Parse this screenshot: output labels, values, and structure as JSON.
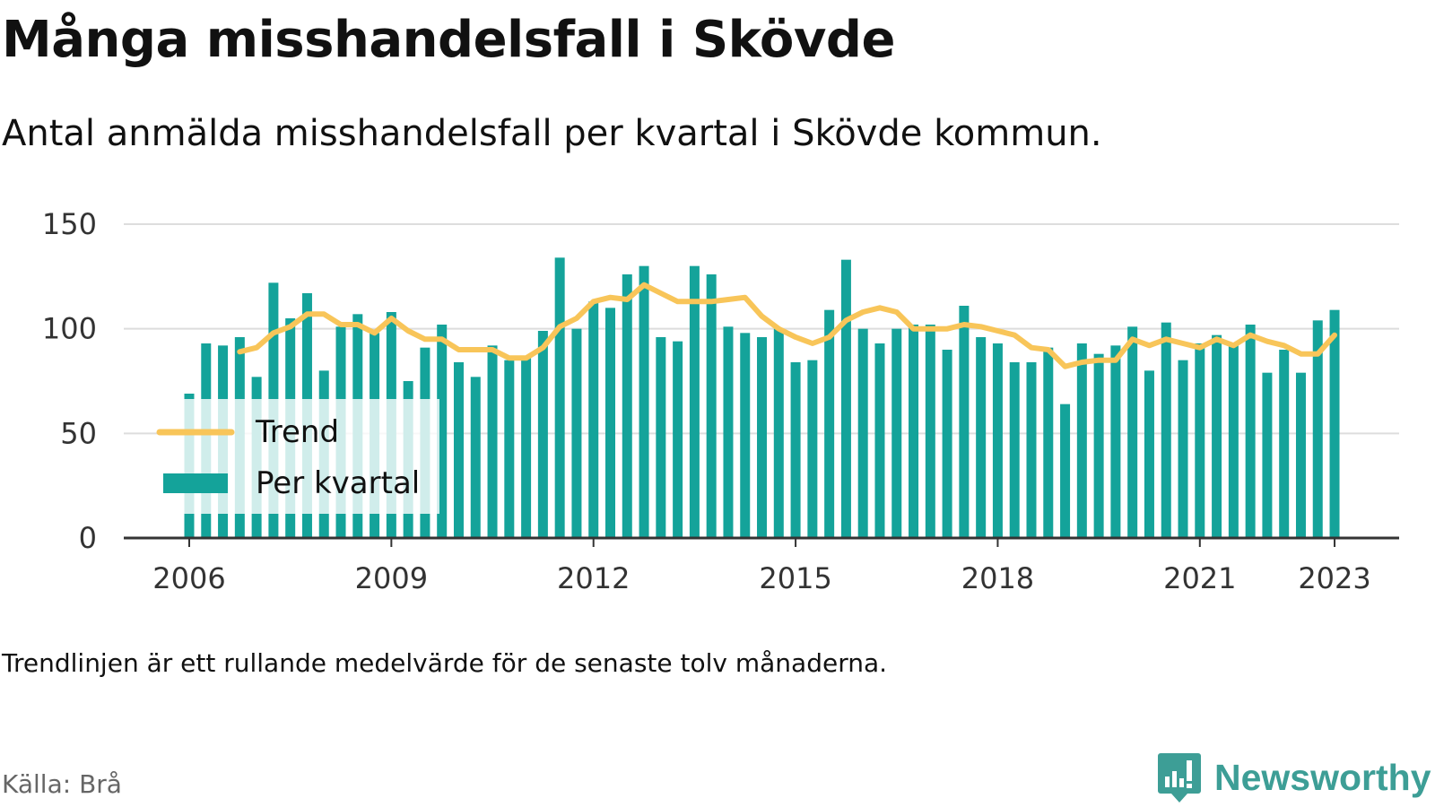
{
  "header": {
    "title": "Många misshandelsfall i Skövde",
    "subtitle": "Antal anmälda misshandelsfall per kvartal i Skövde kommun."
  },
  "footer": {
    "note": "Trendlinjen är ett rullande medelvärde för de senaste tolv månaderna.",
    "source": "Källa: Brå",
    "brand": "Newsworthy"
  },
  "colors": {
    "bar": "#14a39a",
    "trend": "#f8c559",
    "grid": "#dddddd",
    "axis": "#333333",
    "brand": "#3d9e96"
  },
  "icons": {
    "logo": "bar-chart-speech-bubble-icon"
  },
  "chart_data": {
    "type": "bar",
    "xlabel": "",
    "ylabel": "",
    "ylim": [
      0,
      150
    ],
    "yticks": [
      0,
      50,
      100,
      150
    ],
    "xticks": [
      "2006",
      "2009",
      "2012",
      "2015",
      "2018",
      "2021",
      "2023"
    ],
    "grid": true,
    "legend_placement": "bottom-left",
    "start": "2006 Q1",
    "series": [
      {
        "name": "Per kvartal",
        "type": "bar",
        "values": [
          69,
          93,
          92,
          96,
          77,
          122,
          105,
          117,
          80,
          101,
          107,
          98,
          108,
          75,
          91,
          102,
          84,
          77,
          92,
          85,
          86,
          99,
          134,
          100,
          113,
          110,
          126,
          130,
          96,
          94,
          130,
          126,
          101,
          98,
          96,
          100,
          84,
          85,
          109,
          133,
          100,
          93,
          100,
          102,
          102,
          90,
          111,
          96,
          93,
          84,
          84,
          91,
          64,
          93,
          88,
          92,
          101,
          80,
          103,
          85,
          93,
          97,
          93,
          102,
          79,
          90,
          79,
          104,
          109
        ]
      },
      {
        "name": "Trend",
        "type": "line",
        "start_index": 3,
        "values": [
          89,
          91,
          98,
          101,
          107,
          107,
          102,
          102,
          98,
          105,
          99,
          95,
          95,
          90,
          90,
          90,
          86,
          86,
          91,
          101,
          105,
          113,
          115,
          114,
          121,
          117,
          113,
          113,
          113,
          114,
          115,
          106,
          100,
          96,
          93,
          96,
          104,
          108,
          110,
          108,
          100,
          100,
          100,
          102,
          101,
          99,
          97,
          91,
          90,
          82,
          84,
          85,
          85,
          95,
          92,
          95,
          93,
          91,
          95,
          92,
          97,
          94,
          92,
          88,
          88,
          97
        ]
      }
    ]
  }
}
